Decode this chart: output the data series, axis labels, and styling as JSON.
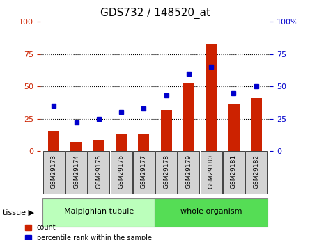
{
  "title": "GDS732 / 148520_at",
  "categories": [
    "GSM29173",
    "GSM29174",
    "GSM29175",
    "GSM29176",
    "GSM29177",
    "GSM29178",
    "GSM29179",
    "GSM29180",
    "GSM29181",
    "GSM29182"
  ],
  "count": [
    15,
    7,
    9,
    13,
    13,
    32,
    53,
    83,
    36,
    41
  ],
  "percentile": [
    35,
    22,
    25,
    30,
    33,
    43,
    60,
    65,
    45,
    50
  ],
  "bar_color": "#cc2200",
  "dot_color": "#0000cc",
  "ylim_left": [
    0,
    100
  ],
  "ylim_right": [
    0,
    100
  ],
  "yticks": [
    0,
    25,
    50,
    75,
    100
  ],
  "tissue_groups": [
    {
      "label": "Malpighian tubule",
      "indices": [
        0,
        1,
        2,
        3,
        4
      ],
      "color": "#bbffbb"
    },
    {
      "label": "whole organism",
      "indices": [
        5,
        6,
        7,
        8,
        9
      ],
      "color": "#55dd55"
    }
  ],
  "left_axis_color": "#cc2200",
  "right_axis_color": "#0000cc",
  "legend_items": [
    {
      "label": "count",
      "color": "#cc2200"
    },
    {
      "label": "percentile rank within the sample",
      "color": "#0000cc"
    }
  ],
  "tissue_label": "tissue",
  "bar_width": 0.5,
  "title_fontsize": 11,
  "tick_fontsize": 8,
  "cat_fontsize": 6.5,
  "tissue_fontsize": 8,
  "legend_fontsize": 7
}
